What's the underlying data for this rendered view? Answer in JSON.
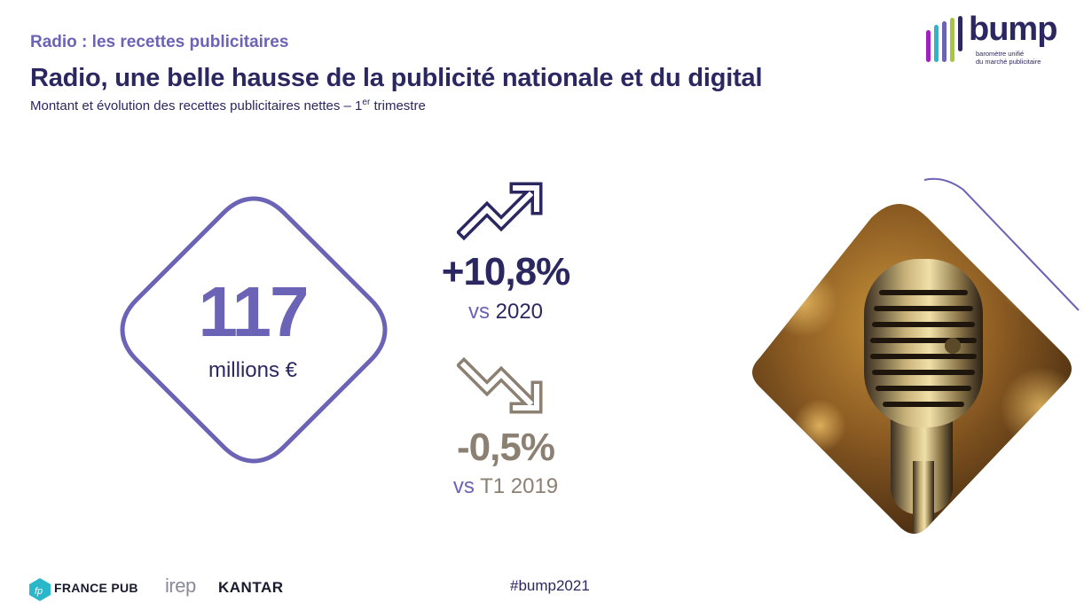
{
  "header": {
    "section_label": "Radio : les recettes publicitaires",
    "title": "Radio, une belle hausse de la publicité nationale et du digital",
    "subtitle_main": "Montant et évolution des recettes publicitaires nettes – 1",
    "subtitle_sup": "er",
    "subtitle_end": " trimestre"
  },
  "logo": {
    "word": "bump",
    "tagline_line1": "baromètre unifié",
    "tagline_line2": "du marché publicitaire",
    "bar_colors": [
      "#a020c0",
      "#2ab7c9",
      "#6b63b5",
      "#a8c63a",
      "#2b2760"
    ]
  },
  "kpi": {
    "value": "117",
    "unit": "millions €"
  },
  "evolution_up": {
    "value": "+10,8%",
    "vs_prefix": "vs",
    "vs_ref": " 2020",
    "icon": "trend-up-icon"
  },
  "evolution_down": {
    "value": "-0,5%",
    "vs_prefix": "vs",
    "vs_ref": " T1 2019",
    "icon": "trend-down-icon"
  },
  "footer": {
    "francepub": "FRANCE PUB",
    "irep": "irep",
    "kantar": "KANTAR",
    "hashtag": "#bump2021"
  },
  "colors": {
    "primary_dark": "#2b2760",
    "accent_purple": "#6b63b5",
    "negative_taupe": "#8c8073"
  }
}
